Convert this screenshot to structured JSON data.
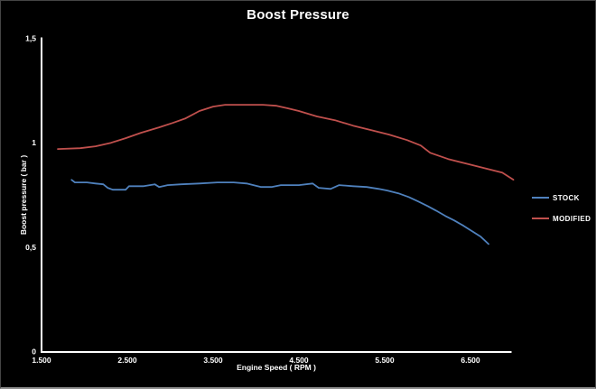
{
  "title": "Boost Pressure",
  "colors": {
    "background": "#000000",
    "axis": "#ffffff",
    "text": "#ffffff",
    "stock": "#4f81bd",
    "modified": "#c0504d",
    "frame_border": "#454545",
    "frame_bottom": "#8f8f8f"
  },
  "chart_data": {
    "type": "line",
    "title": "Boost Pressure",
    "xlabel": "Engine Speed ( RPM )",
    "ylabel": "Boost pressure ( bar )",
    "xlim": [
      1500,
      7000
    ],
    "ylim": [
      0,
      1.5
    ],
    "grid": false,
    "legend_position": "right",
    "x_ticks": [
      {
        "value": 1500,
        "label": "1.500"
      },
      {
        "value": 2500,
        "label": "2.500"
      },
      {
        "value": 3500,
        "label": "3.500"
      },
      {
        "value": 4500,
        "label": "4.500"
      },
      {
        "value": 5500,
        "label": "5.500"
      },
      {
        "value": 6500,
        "label": "6.500"
      }
    ],
    "y_ticks": [
      {
        "value": 0,
        "label": "0"
      },
      {
        "value": 0.5,
        "label": "0,5"
      },
      {
        "value": 1,
        "label": "1"
      },
      {
        "value": 1.5,
        "label": "1,5"
      }
    ],
    "series": [
      {
        "name": "STOCK",
        "color": "#4f81bd",
        "points": [
          [
            1850,
            0.822
          ],
          [
            1890,
            0.81
          ],
          [
            2030,
            0.81
          ],
          [
            2130,
            0.805
          ],
          [
            2220,
            0.801
          ],
          [
            2270,
            0.784
          ],
          [
            2330,
            0.775
          ],
          [
            2480,
            0.775
          ],
          [
            2520,
            0.792
          ],
          [
            2690,
            0.792
          ],
          [
            2820,
            0.801
          ],
          [
            2870,
            0.788
          ],
          [
            2970,
            0.797
          ],
          [
            3130,
            0.801
          ],
          [
            3340,
            0.805
          ],
          [
            3550,
            0.81
          ],
          [
            3740,
            0.81
          ],
          [
            3890,
            0.805
          ],
          [
            4060,
            0.788
          ],
          [
            4180,
            0.788
          ],
          [
            4290,
            0.797
          ],
          [
            4500,
            0.797
          ],
          [
            4660,
            0.805
          ],
          [
            4730,
            0.784
          ],
          [
            4870,
            0.779
          ],
          [
            4970,
            0.797
          ],
          [
            5130,
            0.792
          ],
          [
            5290,
            0.788
          ],
          [
            5430,
            0.779
          ],
          [
            5530,
            0.771
          ],
          [
            5660,
            0.758
          ],
          [
            5780,
            0.74
          ],
          [
            5890,
            0.719
          ],
          [
            6000,
            0.697
          ],
          [
            6100,
            0.675
          ],
          [
            6210,
            0.649
          ],
          [
            6310,
            0.628
          ],
          [
            6420,
            0.602
          ],
          [
            6520,
            0.576
          ],
          [
            6620,
            0.55
          ],
          [
            6710,
            0.515
          ]
        ]
      },
      {
        "name": "MODIFIED",
        "color": "#c0504d",
        "points": [
          [
            1690,
            0.97
          ],
          [
            1950,
            0.974
          ],
          [
            2130,
            0.983
          ],
          [
            2310,
            1.0
          ],
          [
            2480,
            1.022
          ],
          [
            2660,
            1.048
          ],
          [
            2870,
            1.074
          ],
          [
            3030,
            1.095
          ],
          [
            3180,
            1.117
          ],
          [
            3340,
            1.152
          ],
          [
            3500,
            1.173
          ],
          [
            3640,
            1.182
          ],
          [
            3870,
            1.182
          ],
          [
            4080,
            1.182
          ],
          [
            4240,
            1.177
          ],
          [
            4370,
            1.165
          ],
          [
            4500,
            1.152
          ],
          [
            4710,
            1.126
          ],
          [
            4920,
            1.108
          ],
          [
            5130,
            1.082
          ],
          [
            5340,
            1.061
          ],
          [
            5550,
            1.039
          ],
          [
            5760,
            1.013
          ],
          [
            5920,
            0.987
          ],
          [
            6030,
            0.952
          ],
          [
            6240,
            0.922
          ],
          [
            6450,
            0.9
          ],
          [
            6660,
            0.879
          ],
          [
            6870,
            0.857
          ],
          [
            7000,
            0.823
          ]
        ]
      }
    ]
  },
  "legend": {
    "items": [
      {
        "label": "STOCK"
      },
      {
        "label": "MODIFIED"
      }
    ]
  }
}
